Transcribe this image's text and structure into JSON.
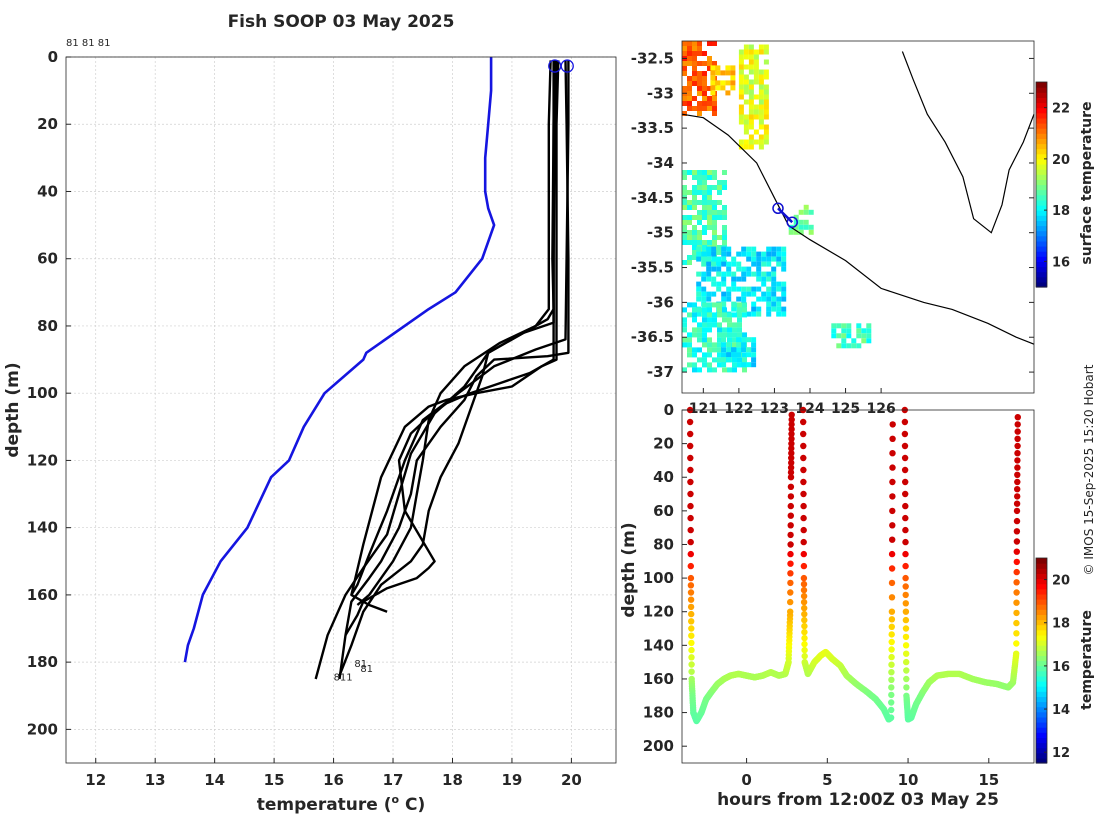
{
  "chart_data": [
    {
      "type": "line",
      "name": "temperature-depth-profiles",
      "title": "Fish SOOP 03 May 2025",
      "xlabel": "temperature (",
      "xlabel_sup": "o",
      "xlabel_end": " C)",
      "ylabel": "depth (m)",
      "xlim": [
        11.5,
        20.75
      ],
      "ylim": [
        210,
        0
      ],
      "xticks": [
        12,
        13,
        14,
        15,
        16,
        17,
        18,
        19,
        20
      ],
      "yticks": [
        0,
        20,
        40,
        60,
        80,
        100,
        120,
        140,
        160,
        180,
        200
      ],
      "top_labels": "81 81 81",
      "end_labels": [
        "811",
        "81",
        "81"
      ],
      "series": [
        {
          "name": "climatology",
          "color": "#1515e0",
          "temp": [
            18.65,
            18.65,
            18.6,
            18.55,
            18.55,
            18.6,
            18.7,
            18.5,
            18.05,
            17.6,
            16.55,
            16.5,
            15.85,
            15.5,
            15.25,
            14.95,
            14.55,
            14.1,
            13.8,
            13.65,
            13.55,
            13.5
          ],
          "depth": [
            0,
            10,
            20,
            30,
            40,
            45,
            50,
            60,
            70,
            75,
            88,
            90,
            100,
            110,
            120,
            125,
            140,
            150,
            160,
            170,
            175,
            180
          ]
        },
        {
          "name": "profile-1",
          "color": "#000000",
          "temp": [
            19.9,
            19.92,
            19.95,
            19.95,
            19.95,
            19.6,
            18.7,
            18.4,
            18.2,
            17.8,
            17.4,
            17.3,
            17.1,
            16.8,
            16.6,
            16.3,
            16.2,
            16.1
          ],
          "depth": [
            1,
            20,
            60,
            80,
            88,
            89,
            90,
            95,
            102,
            110,
            120,
            130,
            140,
            150,
            155,
            162,
            172,
            185
          ]
        },
        {
          "name": "profile-2",
          "color": "#000000",
          "temp": [
            19.7,
            19.7,
            19.68,
            19.7,
            19.6,
            19.2,
            18.6,
            18.5,
            18.3,
            18.1,
            17.8,
            17.6,
            17.5,
            17.3,
            16.8,
            16.5,
            16.3,
            16.1
          ],
          "depth": [
            1,
            20,
            60,
            75,
            78,
            82,
            88,
            95,
            105,
            115,
            125,
            135,
            145,
            150,
            157,
            165,
            175,
            184
          ]
        },
        {
          "name": "profile-3",
          "color": "#000000",
          "temp": [
            19.75,
            19.72,
            19.7,
            19.7,
            19.2,
            18.6,
            18.2,
            17.7,
            17.3,
            17.1,
            16.9,
            16.5,
            16.2,
            15.9,
            15.7
          ],
          "depth": [
            1,
            20,
            60,
            79,
            82,
            88,
            98,
            106,
            118,
            130,
            142,
            152,
            160,
            172,
            185
          ]
        },
        {
          "name": "profile-4",
          "color": "#000000",
          "temp": [
            19.78,
            19.75,
            19.75,
            19.5,
            19.0,
            18.4,
            17.9,
            17.6,
            17.2,
            16.8,
            16.5,
            16.3,
            16.6,
            16.9
          ],
          "depth": [
            1,
            20,
            90,
            92,
            98,
            100,
            102,
            104,
            110,
            125,
            145,
            160,
            163,
            165
          ]
        },
        {
          "name": "profile-5",
          "color": "#000000",
          "temp": [
            19.65,
            19.62,
            19.62,
            19.4,
            18.8,
            18.2,
            17.8,
            17.6,
            17.5,
            17.4,
            17.3,
            17.0,
            16.8,
            16.6,
            16.4
          ],
          "depth": [
            1,
            20,
            75,
            80,
            85,
            92,
            100,
            108,
            120,
            130,
            140,
            150,
            155,
            160,
            163
          ]
        },
        {
          "name": "profile-6",
          "color": "#000000",
          "temp": [
            19.95,
            19.95,
            19.9,
            19.4,
            18.7,
            18.1,
            17.5,
            17.2,
            16.9,
            16.6,
            16.4,
            16.3
          ],
          "depth": [
            1,
            20,
            84,
            87,
            92,
            100,
            108,
            120,
            135,
            148,
            157,
            160
          ]
        },
        {
          "name": "profile-7",
          "color": "#000000",
          "temp": [
            19.72,
            19.7,
            19.7,
            19.3,
            18.8,
            18.3,
            17.9,
            17.6,
            17.3,
            17.1,
            17.2,
            17.7,
            17.6,
            17.4,
            16.9,
            16.5,
            16.4,
            16.2
          ],
          "depth": [
            1,
            20,
            90,
            94,
            97,
            100,
            103,
            107,
            112,
            120,
            135,
            150,
            152,
            155,
            158,
            162,
            166,
            172
          ]
        }
      ],
      "markers": [
        {
          "temp": 19.72,
          "depth": 1.5
        },
        {
          "temp": 19.93,
          "depth": 1.5
        }
      ]
    },
    {
      "type": "heatmap",
      "name": "sst-map",
      "colorbar_label": "surface temperature",
      "colorbar_range": [
        15,
        23
      ],
      "colorbar_ticks": [
        16,
        18,
        20,
        22
      ],
      "xlim": [
        120.4,
        130.3
      ],
      "ylim": [
        -37.3,
        -32.25
      ],
      "xticks": [
        121,
        122,
        123,
        124,
        125,
        126
      ],
      "xtick_labels": [
        "121",
        "122",
        "123",
        "124",
        "125",
        "126"
      ],
      "yticks": [
        -32.5,
        -33,
        -33.5,
        -34,
        -34.5,
        -35,
        -35.5,
        -36,
        -36.5,
        -37
      ],
      "ytick_labels": [
        "-32.5",
        "-33",
        "-33.5",
        "-34",
        "-34.5",
        "-35",
        "-35.5",
        "-36",
        "-36.5",
        "-37"
      ],
      "patches": [
        {
          "lon": [
            120.4,
            121.3
          ],
          "lat": [
            -33.3,
            -32.25
          ],
          "temp": 21.3
        },
        {
          "lon": [
            121.2,
            121.9
          ],
          "lat": [
            -33.0,
            -32.6
          ],
          "temp": 20.5
        },
        {
          "lon": [
            122.0,
            122.8
          ],
          "lat": [
            -33.8,
            -32.3
          ],
          "temp": 19.8
        },
        {
          "lon": [
            120.4,
            121.6
          ],
          "lat": [
            -35.4,
            -34.1
          ],
          "temp": 18.6
        },
        {
          "lon": [
            120.8,
            123.2
          ],
          "lat": [
            -36.2,
            -35.2
          ],
          "temp": 17.9
        },
        {
          "lon": [
            120.4,
            122.2
          ],
          "lat": [
            -37.0,
            -36.0
          ],
          "temp": 18.3
        },
        {
          "lon": [
            123.4,
            124.0
          ],
          "lat": [
            -35.0,
            -34.6
          ],
          "temp": 18.8
        },
        {
          "lon": [
            124.6,
            125.6
          ],
          "lat": [
            -36.6,
            -36.3
          ],
          "temp": 18.5
        },
        {
          "lon": [
            121.5,
            122.4
          ],
          "lat": [
            -36.9,
            -36.5
          ],
          "temp": 18.0
        }
      ],
      "coast": [
        [
          120.4,
          -33.3
        ],
        [
          121.0,
          -33.35
        ],
        [
          121.7,
          -33.6
        ],
        [
          122.5,
          -34.0
        ],
        [
          123.0,
          -34.5
        ],
        [
          123.4,
          -34.9
        ],
        [
          124.0,
          -35.1
        ],
        [
          125.0,
          -35.4
        ],
        [
          126.0,
          -35.8
        ],
        [
          127.2,
          -36.0
        ],
        [
          128.0,
          -36.1
        ],
        [
          129.0,
          -36.3
        ],
        [
          129.8,
          -36.5
        ],
        [
          130.3,
          -36.6
        ]
      ],
      "coast_ne": [
        [
          130.3,
          -33.3
        ],
        [
          130.0,
          -33.7
        ],
        [
          129.6,
          -34.1
        ],
        [
          129.4,
          -34.6
        ],
        [
          129.1,
          -35.0
        ],
        [
          128.6,
          -34.8
        ],
        [
          128.3,
          -34.2
        ],
        [
          127.8,
          -33.7
        ],
        [
          127.3,
          -33.3
        ],
        [
          126.9,
          -32.8
        ],
        [
          126.6,
          -32.4
        ]
      ],
      "track": [
        [
          123.1,
          -34.65
        ],
        [
          123.3,
          -34.75
        ],
        [
          123.5,
          -34.85
        ]
      ],
      "track_markers": [
        [
          123.1,
          -34.65
        ],
        [
          123.5,
          -34.85
        ]
      ]
    },
    {
      "type": "scatter",
      "name": "depth-time-section",
      "xlabel": "hours from 12:00Z 03 May 25",
      "ylabel": "depth (m)",
      "colorbar_label": "temperature",
      "colorbar_range": [
        11.5,
        21
      ],
      "colorbar_ticks": [
        12,
        14,
        16,
        18,
        20
      ],
      "xlim": [
        -4,
        17.8
      ],
      "ylim": [
        210,
        0
      ],
      "xticks": [
        0,
        5,
        10,
        15
      ],
      "yticks": [
        0,
        20,
        40,
        60,
        80,
        100,
        120,
        140,
        160,
        180,
        200
      ],
      "tracks": [
        {
          "t": [
            -3.5,
            -3.45,
            -3.4,
            -3.3,
            -3.1,
            -2.8,
            -2.5,
            -2.2,
            -1.8,
            -1.4,
            -1.0,
            -0.5,
            0.0,
            0.5,
            1.0,
            1.5,
            2.0,
            2.4,
            2.6,
            2.7,
            2.75,
            2.8
          ],
          "d": [
            0,
            100,
            160,
            180,
            185,
            180,
            172,
            168,
            163,
            160,
            158,
            157,
            158,
            159,
            158,
            156,
            158,
            157,
            150,
            120,
            40,
            0
          ]
        },
        {
          "t": [
            3.5,
            3.55,
            3.6,
            3.8,
            4.2,
            4.6,
            4.9,
            5.3,
            5.8,
            6.2,
            6.8,
            7.5,
            8.0,
            8.5,
            8.8,
            8.95,
            9.0,
            9.05
          ],
          "d": [
            0,
            100,
            150,
            157,
            150,
            146,
            144,
            148,
            152,
            158,
            163,
            168,
            172,
            178,
            184,
            183,
            120,
            0
          ]
        },
        {
          "t": [
            9.8,
            9.85,
            9.9,
            10.0,
            10.2,
            10.5,
            10.9,
            11.3,
            11.8,
            12.5,
            13.2,
            14.0,
            14.8,
            15.5,
            16.2,
            16.5,
            16.7,
            16.75,
            16.8
          ],
          "d": [
            0,
            100,
            170,
            184,
            183,
            175,
            168,
            162,
            158,
            157,
            157,
            160,
            162,
            163,
            165,
            162,
            145,
            60,
            0
          ]
        }
      ]
    }
  ],
  "credit": "© IMOS 15-Sep-2025 15:20 Hobart",
  "colors": {
    "climatology": "#1515e0",
    "profiles": "#000000",
    "coast": "#000000"
  }
}
